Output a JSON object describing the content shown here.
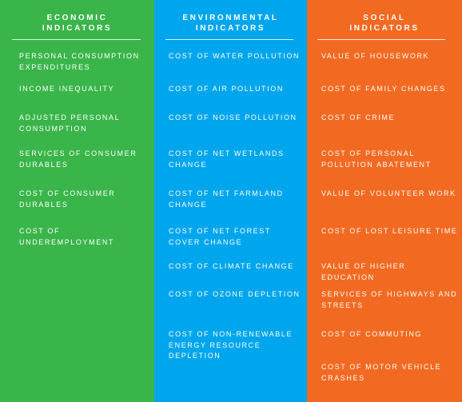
{
  "colors": {
    "economic": "#3ab54a",
    "environmental": "#00a6ed",
    "social": "#f26a21"
  },
  "columns": [
    {
      "header": "ECONOMIC\nINDICATORS",
      "items": [
        "PERSONAL CONSUMPTION\nEXPENDITURES",
        "INCOME INEQUALITY",
        "ADJUSTED PERSONAL\nCONSUMPTION",
        "SERVICES OF CONSUMER\nDURABLES",
        "COST OF CONSUMER\nDURABLES",
        "COST OF\nUNDEREMPLOYMENT"
      ]
    },
    {
      "header": "ENVIRONMENTAL\nINDICATORS",
      "items": [
        "COST OF WATER POLLUTION",
        "COST OF AIR POLLUTION",
        "COST OF NOISE POLLUTION",
        "COST OF NET WETLANDS\nCHANGE",
        "COST OF NET FARMLAND\nCHANGE",
        "COST OF NET FOREST\nCOVER CHANGE",
        "COST OF CLIMATE CHANGE",
        "COST OF OZONE DEPLETION",
        "COST OF NON-RENEWABLE\nENERGY RESOURCE DEPLETION"
      ]
    },
    {
      "header": "SOCIAL\nINDICATORS",
      "items": [
        "VALUE OF HOUSEWORK",
        "COST OF FAMILY CHANGES",
        "COST OF CRIME",
        "COST OF PERSONAL\nPOLLUTION ABATEMENT",
        "VALUE OF VOLUNTEER WORK",
        "COST OF LOST LEISURE TIME",
        "VALUE OF HIGHER EDUCATION",
        "SERVICES OF HIGHWAYS AND\nSTREETS",
        "COST OF COMMUTING",
        "COST OF MOTOR VEHICLE\nCRASHES"
      ]
    }
  ]
}
